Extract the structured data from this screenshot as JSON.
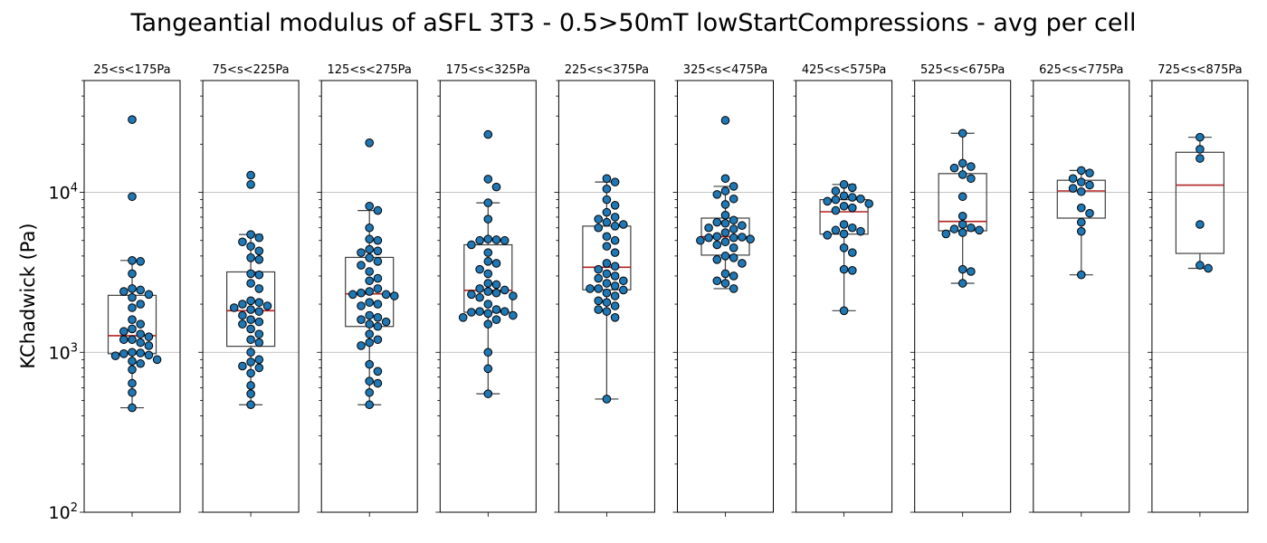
{
  "chart_data": {
    "type": "box-swarm",
    "title": "Tangeantial modulus of aSFL 3T3 - 0.5>50mT lowStartCompressions - avg per cell",
    "ylabel": "KChadwick (Pa)",
    "yscale": "log",
    "ylim": [
      100,
      50000
    ],
    "yticks": [
      {
        "value": 100,
        "base": "10",
        "exp": "2"
      },
      {
        "value": 1000,
        "base": "10",
        "exp": "3"
      },
      {
        "value": 10000,
        "base": "10",
        "exp": "4"
      }
    ],
    "grid": "horizontal at major ticks",
    "colors": {
      "points": "#1f77b4",
      "median": "#b22222",
      "box": "#3f3f3f"
    },
    "panels": [
      {
        "label": "25<s<175Pa",
        "box": {
          "whislo": 450,
          "q1": 980,
          "med": 1270,
          "q3": 2270,
          "whishi": 3750
        },
        "values": [
          28500,
          9400,
          3750,
          3700,
          3100,
          2500,
          2450,
          2400,
          2300,
          2200,
          2000,
          1900,
          1600,
          1500,
          1400,
          1350,
          1300,
          1250,
          1200,
          1200,
          1150,
          1100,
          1000,
          990,
          980,
          960,
          950,
          900,
          880,
          850,
          780,
          640,
          560,
          450
        ]
      },
      {
        "label": "75<s<225Pa",
        "box": {
          "whislo": 470,
          "q1": 1090,
          "med": 1820,
          "q3": 3180,
          "whishi": 5450
        },
        "values": [
          12800,
          11200,
          5450,
          5200,
          4900,
          4600,
          4300,
          3900,
          3800,
          3100,
          3050,
          2700,
          2500,
          2100,
          2050,
          2000,
          1950,
          1900,
          1850,
          1800,
          1700,
          1600,
          1550,
          1500,
          1400,
          1300,
          1200,
          1150,
          1000,
          900,
          870,
          820,
          800,
          740,
          620,
          550,
          470
        ]
      },
      {
        "label": "125<s<275Pa",
        "box": {
          "whislo": 470,
          "q1": 1450,
          "med": 2320,
          "q3": 3920,
          "whishi": 7700
        },
        "values": [
          20400,
          8200,
          7700,
          6000,
          5100,
          5000,
          4400,
          4300,
          4200,
          3900,
          3700,
          3500,
          3200,
          2900,
          2800,
          2500,
          2400,
          2350,
          2300,
          2300,
          2250,
          2050,
          2000,
          1950,
          1700,
          1650,
          1600,
          1550,
          1500,
          1450,
          1300,
          1200,
          1150,
          1100,
          840,
          760,
          660,
          640,
          560,
          470
        ]
      },
      {
        "label": "175<s<325Pa",
        "box": {
          "whislo": 550,
          "q1": 1780,
          "med": 2440,
          "q3": 4700,
          "whishi": 8600
        },
        "values": [
          23000,
          12100,
          10800,
          8600,
          6800,
          5100,
          5050,
          5000,
          5000,
          4700,
          4200,
          3700,
          3600,
          3300,
          3100,
          2700,
          2650,
          2500,
          2450,
          2400,
          2350,
          2300,
          2250,
          2200,
          2000,
          1850,
          1800,
          1800,
          1780,
          1750,
          1700,
          1650,
          1600,
          1500,
          1000,
          790,
          550
        ]
      },
      {
        "label": "225<s<375Pa",
        "box": {
          "whislo": 510,
          "q1": 2460,
          "med": 3400,
          "q3": 6150,
          "whishi": 11600
        },
        "values": [
          12200,
          11600,
          10500,
          9000,
          8300,
          7500,
          7000,
          6800,
          6500,
          6300,
          6150,
          6000,
          5300,
          5000,
          4600,
          4200,
          3600,
          3450,
          3300,
          3100,
          3000,
          2900,
          2800,
          2700,
          2600,
          2500,
          2500,
          2450,
          2350,
          2250,
          2100,
          2050,
          1950,
          1850,
          1800,
          1650,
          510
        ]
      },
      {
        "label": "325<s<475Pa",
        "box": {
          "whislo": 2500,
          "q1": 4050,
          "med": 5280,
          "q3": 6900,
          "whishi": 10900
        },
        "values": [
          28200,
          12200,
          10900,
          10200,
          9700,
          9100,
          8400,
          7200,
          6700,
          6500,
          6400,
          6200,
          6000,
          5900,
          5600,
          5300,
          5250,
          5200,
          5200,
          5100,
          5000,
          4900,
          4700,
          4500,
          4000,
          3900,
          3800,
          3600,
          3100,
          3000,
          2800,
          2700,
          2500
        ]
      },
      {
        "label": "425<s<575Pa",
        "box": {
          "whislo": 1820,
          "q1": 5480,
          "med": 7560,
          "q3": 9000,
          "whishi": 11200
        },
        "values": [
          11200,
          10700,
          10200,
          9500,
          9300,
          9100,
          9000,
          8800,
          8500,
          8200,
          8000,
          7700,
          6300,
          6000,
          5800,
          5700,
          5500,
          5400,
          4500,
          4200,
          3300,
          3250,
          1820
        ]
      },
      {
        "label": "525<s<675Pa",
        "box": {
          "whislo": 2700,
          "q1": 5750,
          "med": 6580,
          "q3": 13100,
          "whishi": 23400
        },
        "values": [
          23400,
          15200,
          14500,
          14200,
          12900,
          12200,
          9400,
          7100,
          6300,
          6000,
          5900,
          5800,
          5600,
          5500,
          3300,
          3200,
          2700
        ]
      },
      {
        "label": "625<s<775Pa",
        "box": {
          "whislo": 3050,
          "q1": 6900,
          "med": 10200,
          "q3": 11900,
          "whishi": 13700
        },
        "values": [
          13700,
          13200,
          12200,
          11600,
          11100,
          10600,
          10100,
          8000,
          7400,
          6500,
          5700,
          3050
        ]
      },
      {
        "label": "725<s<875Pa",
        "box": {
          "whislo": 3350,
          "q1": 4150,
          "med": 11100,
          "q3": 17800,
          "whishi": 22100
        },
        "values": [
          22100,
          18600,
          16300,
          6300,
          3500,
          3350
        ]
      }
    ]
  }
}
